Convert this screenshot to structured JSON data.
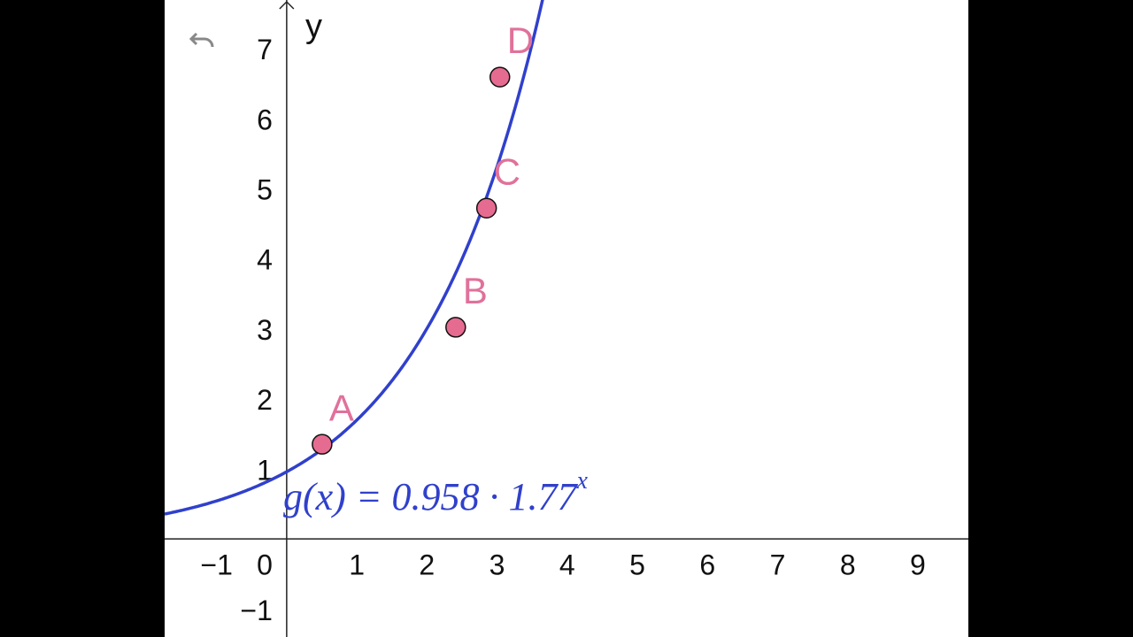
{
  "chart_data": {
    "type": "scatter",
    "y_axis_label": "y",
    "x": [
      0.505,
      2.41,
      2.85,
      3.04
    ],
    "values": [
      1.35,
      3.02,
      4.72,
      6.59
    ],
    "point_labels": [
      "A",
      "B",
      "C",
      "D"
    ],
    "point_color": "#e66b91",
    "label_color": "#e0719a",
    "function": {
      "coefficient": 0.958,
      "base": 1.77,
      "label": "g(x) = 0.958 · 1.77",
      "exponent_label": "x",
      "color": "#3040cc"
    },
    "xlim": [
      -1.74,
      9.72
    ],
    "ylim": [
      -1.4,
      7.69
    ],
    "xticks": [
      {
        "value": -1,
        "label": "−1"
      },
      0,
      1,
      2,
      3,
      4,
      5,
      6,
      7,
      8,
      9
    ],
    "yticks": [
      {
        "value": -1,
        "label": "−1"
      },
      1,
      2,
      3,
      4,
      5,
      6,
      7
    ],
    "grid": false
  }
}
